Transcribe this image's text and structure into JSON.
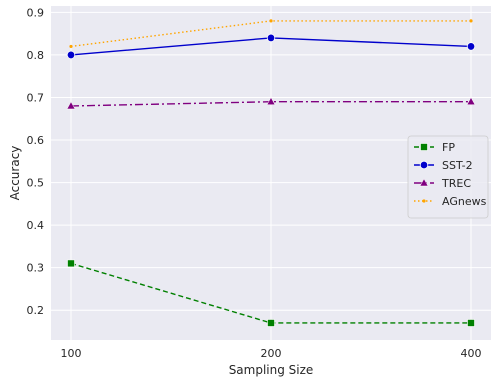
{
  "chart_data": {
    "type": "line",
    "title": "",
    "xlabel": "Sampling Size",
    "ylabel": "Accuracy",
    "x": [
      100,
      200,
      400
    ],
    "x_tick_labels": [
      "100",
      "200",
      "400"
    ],
    "y_ticks": [
      0.2,
      0.3,
      0.4,
      0.5,
      0.6,
      0.7,
      0.8,
      0.9
    ],
    "y_tick_labels": [
      "0.2",
      "0.3",
      "0.4",
      "0.5",
      "0.6",
      "0.7",
      "0.8",
      "0.9"
    ],
    "ylim": [
      0.13,
      0.915
    ],
    "x_scale": "log",
    "grid": true,
    "legend_position": "center-right",
    "background_color": "#eaeaf2",
    "grid_color": "#ffffff",
    "series": [
      {
        "name": "FP",
        "values": [
          0.31,
          0.17,
          0.17
        ],
        "color": "#008000",
        "marker": "square",
        "linestyle": "dashed"
      },
      {
        "name": "SST-2",
        "values": [
          0.8,
          0.84,
          0.82
        ],
        "color": "#0000cc",
        "marker": "circle",
        "linestyle": "solid"
      },
      {
        "name": "TREC",
        "values": [
          0.68,
          0.69,
          0.69
        ],
        "color": "#800080",
        "marker": "triangle",
        "linestyle": "dashdot"
      },
      {
        "name": "AGnews",
        "values": [
          0.82,
          0.88,
          0.88
        ],
        "color": "#ffa500",
        "marker": "point",
        "linestyle": "dotted"
      }
    ]
  }
}
